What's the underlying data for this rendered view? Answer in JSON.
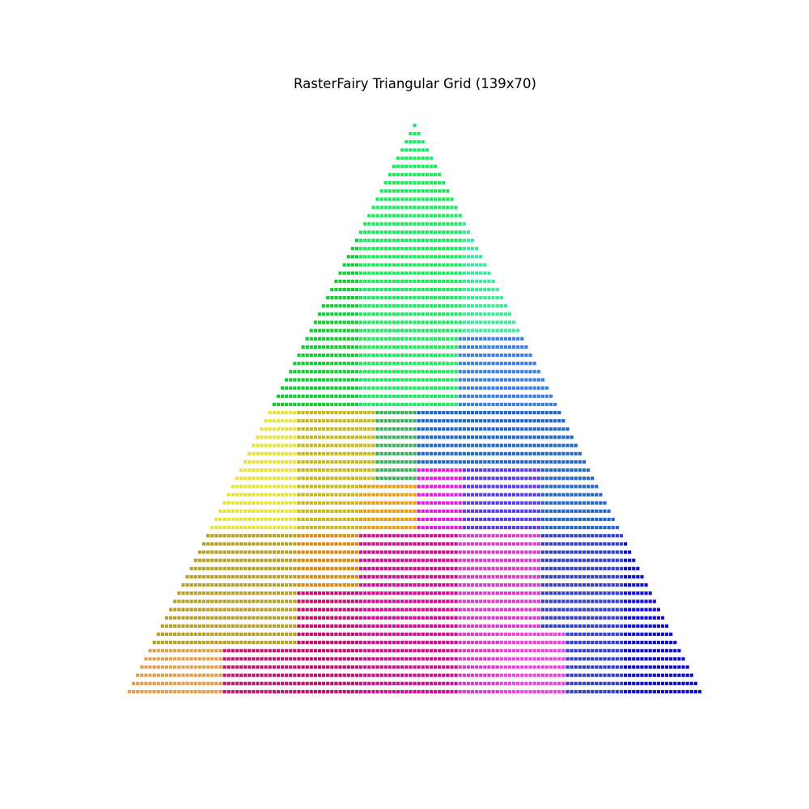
{
  "chart_data": {
    "type": "scatter",
    "title": "RasterFairy Triangular Grid (139x70)",
    "xlabel": "",
    "ylabel": "",
    "grid": false,
    "axes_visible": false,
    "marker": "square",
    "grid_columns": 139,
    "grid_rows": 70,
    "layout": "triangular",
    "row_width_rule": "row r (0 = apex) contains 2r+1 cells, centered",
    "color_regions": [
      {
        "rows": [
          0,
          34
        ],
        "cols": [
          0,
          55
        ],
        "color": "#12cc33"
      },
      {
        "rows": [
          0,
          34
        ],
        "cols": [
          56,
          80
        ],
        "color": "#1ee860"
      },
      {
        "rows": [
          0,
          34
        ],
        "cols": [
          81,
          138
        ],
        "color": "#3ce89a"
      },
      {
        "rows": [
          26,
          34
        ],
        "cols": [
          80,
          110
        ],
        "color": "#3c7ee6"
      },
      {
        "rows": [
          35,
          49
        ],
        "cols": [
          0,
          40
        ],
        "color": "#e8e23c"
      },
      {
        "rows": [
          35,
          49
        ],
        "cols": [
          41,
          59
        ],
        "color": "#c8b81e"
      },
      {
        "rows": [
          35,
          49
        ],
        "cols": [
          60,
          69
        ],
        "color": "#3cae5a"
      },
      {
        "rows": [
          35,
          49
        ],
        "cols": [
          70,
          138
        ],
        "color": "#2266cc"
      },
      {
        "rows": [
          42,
          49
        ],
        "cols": [
          70,
          80
        ],
        "color": "#e01ee0"
      },
      {
        "rows": [
          42,
          49
        ],
        "cols": [
          81,
          99
        ],
        "color": "#5a3ce6"
      },
      {
        "rows": [
          44,
          49
        ],
        "cols": [
          56,
          69
        ],
        "color": "#e89e12"
      },
      {
        "rows": [
          50,
          69
        ],
        "cols": [
          0,
          40
        ],
        "color": "#b8a028"
      },
      {
        "rows": [
          50,
          69
        ],
        "cols": [
          41,
          55
        ],
        "color": "#d88a12"
      },
      {
        "rows": [
          50,
          69
        ],
        "cols": [
          56,
          79
        ],
        "color": "#cc0f8c"
      },
      {
        "rows": [
          50,
          69
        ],
        "cols": [
          80,
          99
        ],
        "color": "#d83cc4"
      },
      {
        "rows": [
          50,
          69
        ],
        "cols": [
          100,
          119
        ],
        "color": "#3040c8"
      },
      {
        "rows": [
          50,
          69
        ],
        "cols": [
          120,
          138
        ],
        "color": "#1010cc"
      },
      {
        "rows": [
          57,
          69
        ],
        "cols": [
          41,
          55
        ],
        "color": "#c0106e"
      },
      {
        "rows": [
          64,
          69
        ],
        "cols": [
          0,
          22
        ],
        "color": "#e0a050"
      },
      {
        "rows": [
          64,
          69
        ],
        "cols": [
          23,
          40
        ],
        "color": "#c0186e"
      },
      {
        "rows": [
          62,
          69
        ],
        "cols": [
          90,
          105
        ],
        "color": "#ee44dd"
      }
    ]
  }
}
